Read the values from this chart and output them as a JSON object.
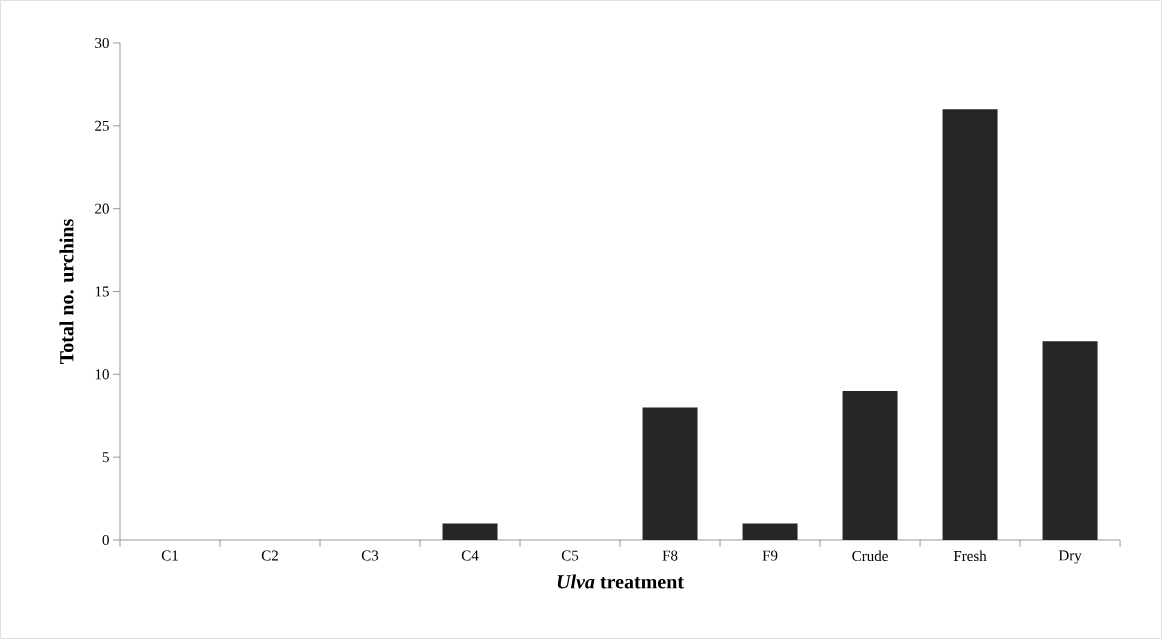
{
  "chart_data": {
    "type": "bar",
    "xlabel": "*Ulva* treatment",
    "ylabel": "Total no. urchins",
    "categories": [
      "C1",
      "C2",
      "C3",
      "C4",
      "C5",
      "F8",
      "F9",
      "Crude",
      "Fresh",
      "Dry"
    ],
    "values": [
      0,
      0,
      0,
      1,
      0,
      8,
      1,
      9,
      26,
      12
    ],
    "color": "#262626",
    "ylim": [
      0,
      30
    ],
    "yticks": [
      0,
      5,
      10,
      15,
      20,
      25,
      30
    ],
    "grid": false
  }
}
